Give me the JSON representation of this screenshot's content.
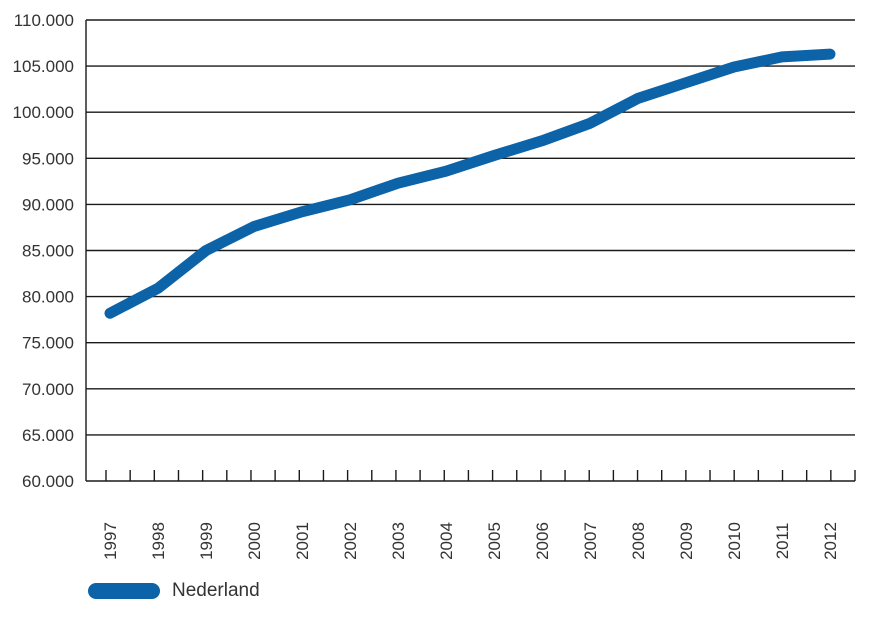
{
  "chart_data": {
    "type": "line",
    "title": "",
    "xlabel": "",
    "ylabel": "",
    "x": [
      "1997",
      "1998",
      "1999",
      "2000",
      "2001",
      "2002",
      "2003",
      "2004",
      "2005",
      "2006",
      "2007",
      "2008",
      "2009",
      "2010",
      "2011",
      "2012"
    ],
    "ylim": [
      60000,
      110000
    ],
    "yticks": [
      60000,
      65000,
      70000,
      75000,
      80000,
      85000,
      90000,
      95000,
      100000,
      105000,
      110000
    ],
    "ytick_labels": [
      "60.000",
      "65.000",
      "70.000",
      "75.000",
      "80.000",
      "85.000",
      "90.000",
      "95.000",
      "100.000",
      "105.000",
      "110.000"
    ],
    "grid": true,
    "legend_position": "bottom-left",
    "series": [
      {
        "name": "Nederland",
        "color": "#0D63A8",
        "values": [
          78200,
          80900,
          85000,
          87600,
          89200,
          90500,
          92300,
          93600,
          95300,
          96900,
          98800,
          101500,
          103200,
          104900,
          106000,
          106300
        ]
      }
    ]
  }
}
